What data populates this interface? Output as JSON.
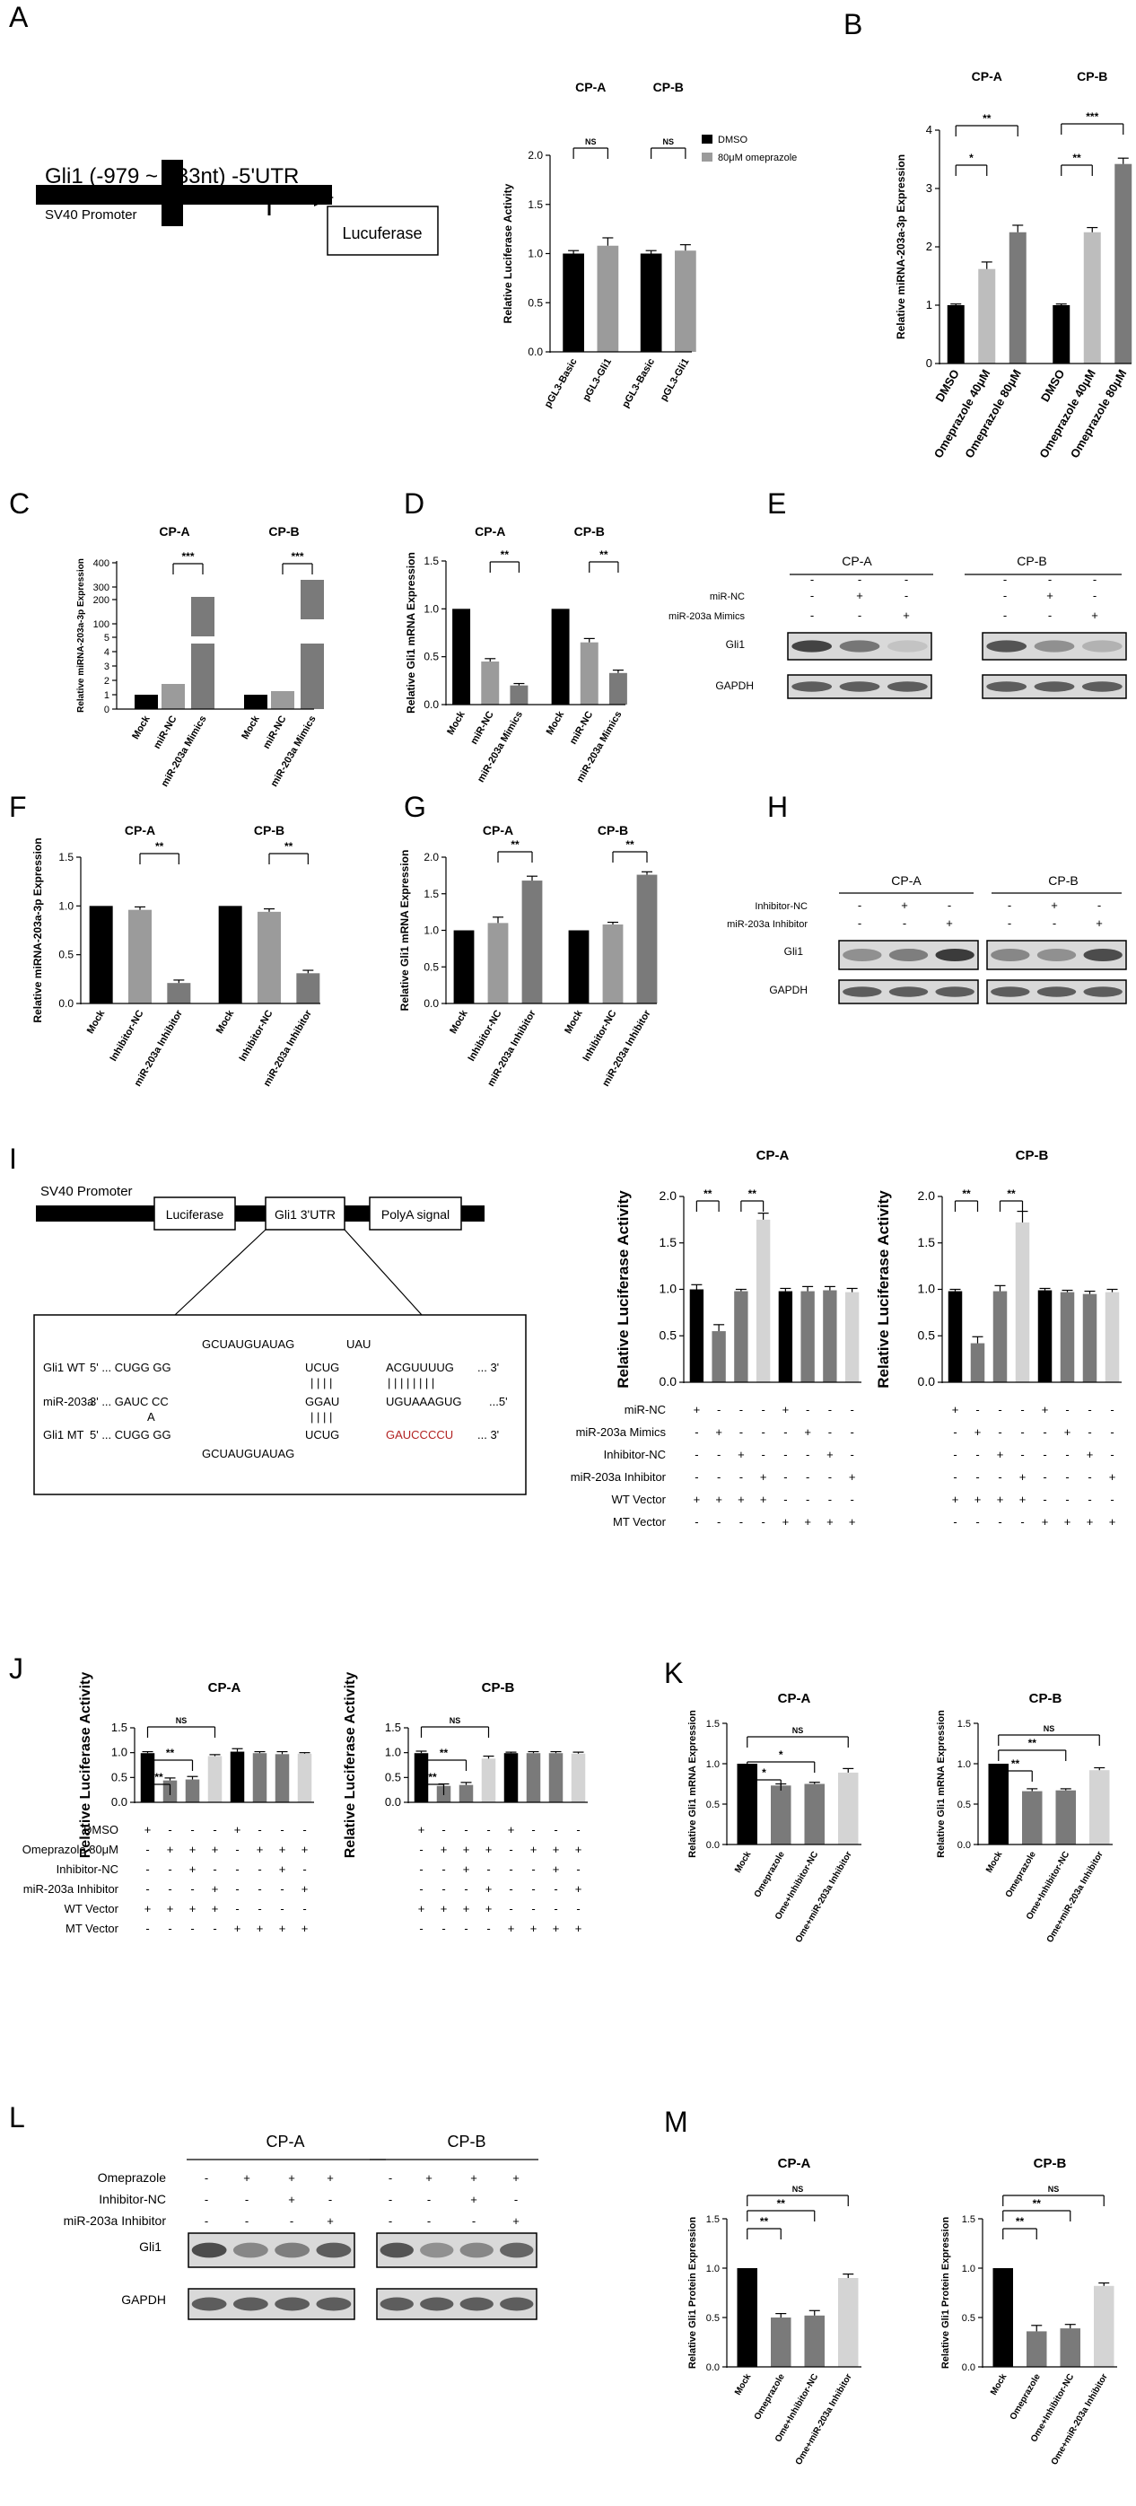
{
  "letters": [
    "A",
    "B",
    "C",
    "D",
    "E",
    "F",
    "G",
    "H",
    "I",
    "J",
    "K",
    "L",
    "M"
  ],
  "common": {
    "cpA": "CP-A",
    "cpB": "CP-B",
    "gli1": "Gli1",
    "gapdh": "GAPDH",
    "plus": "+",
    "minus": "-",
    "ns": "NS",
    "s1": "*",
    "s2": "**",
    "s3": "***"
  },
  "panelA": {
    "construct": "Gli1 (-979 ~ +33nt) -5'UTR",
    "sv40": "SV40 Promoter",
    "luc": "Lucuferase",
    "legend_dmso": "DMSO",
    "legend_ome": "80μM omeprazole"
  },
  "panelI": {
    "sv40": "SV40 Promoter",
    "luc": "Luciferase",
    "utr": "Gli1 3'UTR",
    "polya": "PolyA signal",
    "wt_label": "Gli1 WT",
    "mir_label": "miR-203a",
    "mt_label": "Gli1 MT",
    "top_loop1": "GCUAUGUAUAG",
    "top_loop2": "UAU",
    "wt_5p": "5' ... CUGG GG",
    "wt_site1": "UCUG",
    "wt_site2": "ACGUUUUG",
    "wt_3p": "... 3'",
    "mir_3p": "3' ... GAUC CC",
    "mir_A": "A",
    "mir_site1": "GGAU",
    "mir_site2": "UGUAAAGUG",
    "mir_5p": "...5'",
    "mt_5p": "5' ... CUGG GG",
    "mt_site1": "UCUG",
    "mt_site2": "GAUCCCCU",
    "mt_3p": "... 3'",
    "bot_loop": "GCUAUGUAUAG",
    "mut_color": "#b22222"
  },
  "row_labels": {
    "I": [
      "miR-NC",
      "miR-203a Mimics",
      "Inhibitor-NC",
      "miR-203a Inhibitor",
      "WT Vector",
      "MT Vector"
    ],
    "J": [
      "DMSO",
      "Omeprazole 80μM",
      "Inhibitor-NC",
      "miR-203a Inhibitor",
      "WT Vector",
      "MT Vector"
    ],
    "E": [
      "miR-NC",
      "miR-203a Mimics"
    ],
    "H": [
      "Inhibitor-NC",
      "miR-203a Inhibitor"
    ],
    "L": [
      "Omeprazole",
      "Inhibitor-NC",
      "miR-203a Inhibitor"
    ]
  },
  "signs": {
    "I": [
      [
        "+",
        "-",
        "-",
        "-",
        "+",
        "-",
        "-",
        "-"
      ],
      [
        "-",
        "+",
        "-",
        "-",
        "-",
        "+",
        "-",
        "-"
      ],
      [
        "-",
        "-",
        "+",
        "-",
        "-",
        "-",
        "+",
        "-"
      ],
      [
        "-",
        "-",
        "-",
        "+",
        "-",
        "-",
        "-",
        "+"
      ],
      [
        "+",
        "+",
        "+",
        "+",
        "-",
        "-",
        "-",
        "-"
      ],
      [
        "-",
        "-",
        "-",
        "-",
        "+",
        "+",
        "+",
        "+"
      ]
    ],
    "J": [
      [
        "+",
        "-",
        "-",
        "-",
        "+",
        "-",
        "-",
        "-"
      ],
      [
        "-",
        "+",
        "+",
        "+",
        "-",
        "+",
        "+",
        "+"
      ],
      [
        "-",
        "-",
        "+",
        "-",
        "-",
        "-",
        "+",
        "-"
      ],
      [
        "-",
        "-",
        "-",
        "+",
        "-",
        "-",
        "-",
        "+"
      ],
      [
        "+",
        "+",
        "+",
        "+",
        "-",
        "-",
        "-",
        "-"
      ],
      [
        "-",
        "-",
        "-",
        "-",
        "+",
        "+",
        "+",
        "+"
      ]
    ],
    "E": [
      [
        "-",
        "+",
        "-"
      ],
      [
        "-",
        "-",
        "+"
      ]
    ],
    "H": [
      [
        "-",
        "+",
        "-"
      ],
      [
        "-",
        "-",
        "+"
      ]
    ],
    "L": [
      [
        "-",
        "+",
        "+",
        "+"
      ],
      [
        "-",
        "-",
        "+",
        "-"
      ],
      [
        "-",
        "-",
        "-",
        "+"
      ]
    ]
  },
  "chart_data": [
    {
      "panel": "A",
      "type": "bar",
      "ylabel": "Relative Luciferase Activity",
      "yticks": [
        "0.0",
        "0.5",
        "1.0",
        "1.5",
        "2.0"
      ],
      "ylim": [
        0,
        2
      ],
      "categories": [
        "pGL3-Basic",
        "pGL3-Gli1",
        "pGL3-Basic",
        "pGL3-Gli1"
      ],
      "values": [
        1.0,
        1.08,
        1.0,
        1.03
      ],
      "errors": [
        0.03,
        0.08,
        0.03,
        0.06
      ],
      "colors": [
        "#000000",
        "#9b9b9b",
        "#000000",
        "#9b9b9b"
      ],
      "group_labels": [
        "CP-A",
        "CP-B"
      ],
      "sig": [
        {
          "from": 0,
          "to": 1,
          "text": "NS"
        },
        {
          "from": 2,
          "to": 3,
          "text": "NS"
        }
      ]
    },
    {
      "panel": "B",
      "type": "bar",
      "ylabel": "Relative miRNA-203a-3p Expression",
      "yticks": [
        "0",
        "1",
        "2",
        "3",
        "4"
      ],
      "ylim": [
        0,
        4
      ],
      "categories": [
        "DMSO",
        "Omeprazole 40μM",
        "Omeprazole 80μM",
        "DMSO",
        "Omeprazole 40μM",
        "Omeprazole 80μM"
      ],
      "values": [
        1.0,
        1.62,
        2.25,
        1.0,
        2.25,
        3.42
      ],
      "errors": [
        0.02,
        0.12,
        0.12,
        0.02,
        0.08,
        0.1
      ],
      "colors": [
        "#000000",
        "#bdbdbd",
        "#7a7a7a",
        "#000000",
        "#bdbdbd",
        "#7a7a7a"
      ],
      "group_labels": [
        "CP-A",
        "CP-B"
      ],
      "sig": [
        {
          "from": 0,
          "to": 1,
          "text": "*"
        },
        {
          "from": 0,
          "to": 2,
          "text": "**"
        },
        {
          "from": 3,
          "to": 4,
          "text": "**"
        },
        {
          "from": 3,
          "to": 5,
          "text": "***"
        }
      ]
    },
    {
      "panel": "C",
      "type": "bar",
      "ylabel": "Relative miRNA-203a-3p Expression",
      "yticks": [
        "0",
        "1",
        "2",
        "3",
        "4",
        "5",
        "100",
        "200",
        "300",
        "400"
      ],
      "axis_break": true,
      "categories": [
        "Mock",
        "miR-NC",
        "miR-203a Mimics",
        "Mock",
        "miR-NC",
        "miR-203a Mimics"
      ],
      "values": [
        1.0,
        1.8,
        260,
        1.0,
        1.2,
        330
      ],
      "colors": [
        "#000000",
        "#9b9b9b",
        "#7a7a7a",
        "#000000",
        "#9b9b9b",
        "#7a7a7a"
      ],
      "group_labels": [
        "CP-A",
        "CP-B"
      ],
      "sig": [
        {
          "from": 1,
          "to": 2,
          "text": "***"
        },
        {
          "from": 4,
          "to": 5,
          "text": "***"
        }
      ]
    },
    {
      "panel": "D",
      "type": "bar",
      "ylabel": "Relative Gli1 mRNA Expression",
      "yticks": [
        "0.0",
        "0.5",
        "1.0",
        "1.5"
      ],
      "ylim": [
        0,
        1.5
      ],
      "categories": [
        "Mock",
        "miR-NC",
        "miR-203a Mimics",
        "Mock",
        "miR-NC",
        "miR-203a Mimics"
      ],
      "values": [
        1.0,
        0.45,
        0.2,
        1.0,
        0.65,
        0.33
      ],
      "errors": [
        0,
        0.03,
        0.02,
        0,
        0.04,
        0.03
      ],
      "colors": [
        "#000000",
        "#9b9b9b",
        "#7a7a7a",
        "#000000",
        "#9b9b9b",
        "#7a7a7a"
      ],
      "group_labels": [
        "CP-A",
        "CP-B"
      ],
      "sig": [
        {
          "from": 1,
          "to": 2,
          "text": "**"
        },
        {
          "from": 4,
          "to": 5,
          "text": "**"
        }
      ]
    },
    {
      "panel": "F",
      "type": "bar",
      "ylabel": "Relative miRNA-203a-3p Expression",
      "yticks": [
        "0.0",
        "0.5",
        "1.0",
        "1.5"
      ],
      "ylim": [
        0,
        1.5
      ],
      "categories": [
        "Mock",
        "Inhibitor-NC",
        "miR-203a Inhibitor",
        "Mock",
        "Inhibitor-NC",
        "miR-203a Inhibitor"
      ],
      "values": [
        1.0,
        0.96,
        0.21,
        1.0,
        0.94,
        0.31
      ],
      "errors": [
        0,
        0.03,
        0.03,
        0,
        0.03,
        0.03
      ],
      "colors": [
        "#000000",
        "#9b9b9b",
        "#7a7a7a",
        "#000000",
        "#9b9b9b",
        "#7a7a7a"
      ],
      "group_labels": [
        "CP-A",
        "CP-B"
      ],
      "sig": [
        {
          "from": 1,
          "to": 2,
          "text": "**"
        },
        {
          "from": 4,
          "to": 5,
          "text": "**"
        }
      ]
    },
    {
      "panel": "G",
      "type": "bar",
      "ylabel": "Relative Gli1 mRNA Expression",
      "yticks": [
        "0.0",
        "0.5",
        "1.0",
        "1.5",
        "2.0"
      ],
      "ylim": [
        0,
        2
      ],
      "categories": [
        "Mock",
        "Inhibitor-NC",
        "miR-203a Inhibitor",
        "Mock",
        "Inhibitor-NC",
        "miR-203a Inhibitor"
      ],
      "values": [
        1.0,
        1.1,
        1.68,
        1.0,
        1.08,
        1.76
      ],
      "errors": [
        0,
        0.08,
        0.06,
        0,
        0.03,
        0.04
      ],
      "colors": [
        "#000000",
        "#9b9b9b",
        "#7a7a7a",
        "#000000",
        "#9b9b9b",
        "#7a7a7a"
      ],
      "group_labels": [
        "CP-A",
        "CP-B"
      ],
      "sig": [
        {
          "from": 1,
          "to": 2,
          "text": "**"
        },
        {
          "from": 4,
          "to": 5,
          "text": "**"
        }
      ]
    },
    {
      "panel": "I-A",
      "type": "bar",
      "title": "CP-A",
      "ylabel": "Relative Luciferase Activity",
      "yticks": [
        "0.0",
        "0.5",
        "1.0",
        "1.5",
        "2.0"
      ],
      "ylim": [
        0,
        2
      ],
      "values": [
        1.0,
        0.55,
        0.98,
        1.75,
        0.98,
        0.98,
        0.99,
        0.97
      ],
      "errors": [
        0.05,
        0.07,
        0.02,
        0.07,
        0.03,
        0.05,
        0.04,
        0.04
      ],
      "colors": [
        "#000000",
        "#7a7a7a",
        "#7a7a7a",
        "#d4d4d4",
        "#000000",
        "#7a7a7a",
        "#7a7a7a",
        "#d4d4d4"
      ],
      "sig": [
        {
          "from": 0,
          "to": 1,
          "text": "**"
        },
        {
          "from": 2,
          "to": 3,
          "text": "**"
        }
      ]
    },
    {
      "panel": "I-B",
      "type": "bar",
      "title": "CP-B",
      "ylabel": "Relative Luciferase Activity",
      "yticks": [
        "0.0",
        "0.5",
        "1.0",
        "1.5",
        "2.0"
      ],
      "ylim": [
        0,
        2
      ],
      "values": [
        0.98,
        0.42,
        0.98,
        1.72,
        0.99,
        0.97,
        0.95,
        0.97
      ],
      "errors": [
        0.02,
        0.07,
        0.06,
        0.12,
        0.02,
        0.02,
        0.03,
        0.03
      ],
      "colors": [
        "#000000",
        "#7a7a7a",
        "#7a7a7a",
        "#d4d4d4",
        "#000000",
        "#7a7a7a",
        "#7a7a7a",
        "#d4d4d4"
      ],
      "sig": [
        {
          "from": 0,
          "to": 1,
          "text": "**"
        },
        {
          "from": 2,
          "to": 3,
          "text": "**"
        }
      ]
    },
    {
      "panel": "J-A",
      "type": "bar",
      "title": "CP-A",
      "ylabel": "Relative Luciferase Activity",
      "yticks": [
        "0.0",
        "0.5",
        "1.0",
        "1.5"
      ],
      "ylim": [
        0,
        1.5
      ],
      "values": [
        0.99,
        0.44,
        0.46,
        0.93,
        1.02,
        0.99,
        0.97,
        0.98
      ],
      "errors": [
        0.03,
        0.05,
        0.06,
        0.03,
        0.06,
        0.03,
        0.05,
        0.02
      ],
      "colors": [
        "#000000",
        "#7a7a7a",
        "#7a7a7a",
        "#d4d4d4",
        "#000000",
        "#7a7a7a",
        "#7a7a7a",
        "#d4d4d4"
      ],
      "sig": [
        {
          "from": 0,
          "to": 1,
          "text": "**"
        },
        {
          "from": 0,
          "to": 2,
          "text": "**"
        },
        {
          "from": 0,
          "to": 3,
          "text": "NS"
        }
      ]
    },
    {
      "panel": "J-B",
      "type": "bar",
      "title": "CP-B",
      "ylabel": "Relative Luciferase Activity",
      "yticks": [
        "0.0",
        "0.5",
        "1.0",
        "1.5"
      ],
      "ylim": [
        0,
        1.5
      ],
      "values": [
        0.99,
        0.33,
        0.35,
        0.88,
        0.99,
        0.99,
        0.99,
        0.98
      ],
      "errors": [
        0.04,
        0.04,
        0.05,
        0.05,
        0.02,
        0.03,
        0.03,
        0.03
      ],
      "colors": [
        "#000000",
        "#7a7a7a",
        "#7a7a7a",
        "#d4d4d4",
        "#000000",
        "#7a7a7a",
        "#7a7a7a",
        "#d4d4d4"
      ],
      "sig": [
        {
          "from": 0,
          "to": 1,
          "text": "**"
        },
        {
          "from": 0,
          "to": 2,
          "text": "**"
        },
        {
          "from": 0,
          "to": 3,
          "text": "NS"
        }
      ]
    },
    {
      "panel": "K-A",
      "type": "bar",
      "title": "CP-A",
      "ylabel": "Relative Gli1 mRNA Expression",
      "yticks": [
        "0.0",
        "0.5",
        "1.0",
        "1.5"
      ],
      "ylim": [
        0,
        1.5
      ],
      "categories": [
        "Mock",
        "Omeprazole",
        "Ome+Inhibitor-NC",
        "Ome+miR-203a Inhibitor"
      ],
      "values": [
        1.0,
        0.73,
        0.75,
        0.89
      ],
      "errors": [
        0,
        0.02,
        0.02,
        0.05
      ],
      "colors": [
        "#000000",
        "#7a7a7a",
        "#7a7a7a",
        "#d4d4d4"
      ],
      "sig": [
        {
          "from": 0,
          "to": 1,
          "text": "*"
        },
        {
          "from": 0,
          "to": 2,
          "text": "*"
        },
        {
          "from": 0,
          "to": 3,
          "text": "NS"
        }
      ]
    },
    {
      "panel": "K-B",
      "type": "bar",
      "title": "CP-B",
      "ylabel": "Relative Gli1 mRNA Expression",
      "yticks": [
        "0.0",
        "0.5",
        "1.0",
        "1.5"
      ],
      "ylim": [
        0,
        1.5
      ],
      "categories": [
        "Mock",
        "Omeprazole",
        "Ome+Inhibitor-NC",
        "Ome+miR-203a Inhibitor"
      ],
      "values": [
        1.0,
        0.66,
        0.67,
        0.92
      ],
      "errors": [
        0,
        0.03,
        0.02,
        0.03
      ],
      "colors": [
        "#000000",
        "#7a7a7a",
        "#7a7a7a",
        "#d4d4d4"
      ],
      "sig": [
        {
          "from": 0,
          "to": 1,
          "text": "**"
        },
        {
          "from": 0,
          "to": 2,
          "text": "**"
        },
        {
          "from": 0,
          "to": 3,
          "text": "NS"
        }
      ]
    },
    {
      "panel": "M-A",
      "type": "bar",
      "title": "CP-A",
      "ylabel": "Relative Gli1 Protein Expression",
      "yticks": [
        "0.0",
        "0.5",
        "1.0",
        "1.5"
      ],
      "ylim": [
        0,
        1.5
      ],
      "categories": [
        "Mock",
        "Omeprazole",
        "Ome+Inhibitor-NC",
        "Ome+miR-203a Inhibitor"
      ],
      "values": [
        1.0,
        0.5,
        0.52,
        0.9
      ],
      "errors": [
        0,
        0.04,
        0.05,
        0.04
      ],
      "colors": [
        "#000000",
        "#7a7a7a",
        "#7a7a7a",
        "#d4d4d4"
      ],
      "sig": [
        {
          "from": 0,
          "to": 1,
          "text": "**"
        },
        {
          "from": 0,
          "to": 2,
          "text": "**"
        },
        {
          "from": 0,
          "to": 3,
          "text": "NS"
        }
      ]
    },
    {
      "panel": "M-B",
      "type": "bar",
      "title": "CP-B",
      "ylabel": "Relative Gli1 Protein Expression",
      "yticks": [
        "0.0",
        "0.5",
        "1.0",
        "1.5"
      ],
      "ylim": [
        0,
        1.5
      ],
      "categories": [
        "Mock",
        "Omeprazole",
        "Ome+Inhibitor-NC",
        "Ome+miR-203a Inhibitor"
      ],
      "values": [
        1.0,
        0.36,
        0.39,
        0.82
      ],
      "errors": [
        0,
        0.06,
        0.04,
        0.03
      ],
      "colors": [
        "#000000",
        "#7a7a7a",
        "#7a7a7a",
        "#d4d4d4"
      ],
      "sig": [
        {
          "from": 0,
          "to": 1,
          "text": "**"
        },
        {
          "from": 0,
          "to": 2,
          "text": "**"
        },
        {
          "from": 0,
          "to": 3,
          "text": "NS"
        }
      ]
    }
  ]
}
